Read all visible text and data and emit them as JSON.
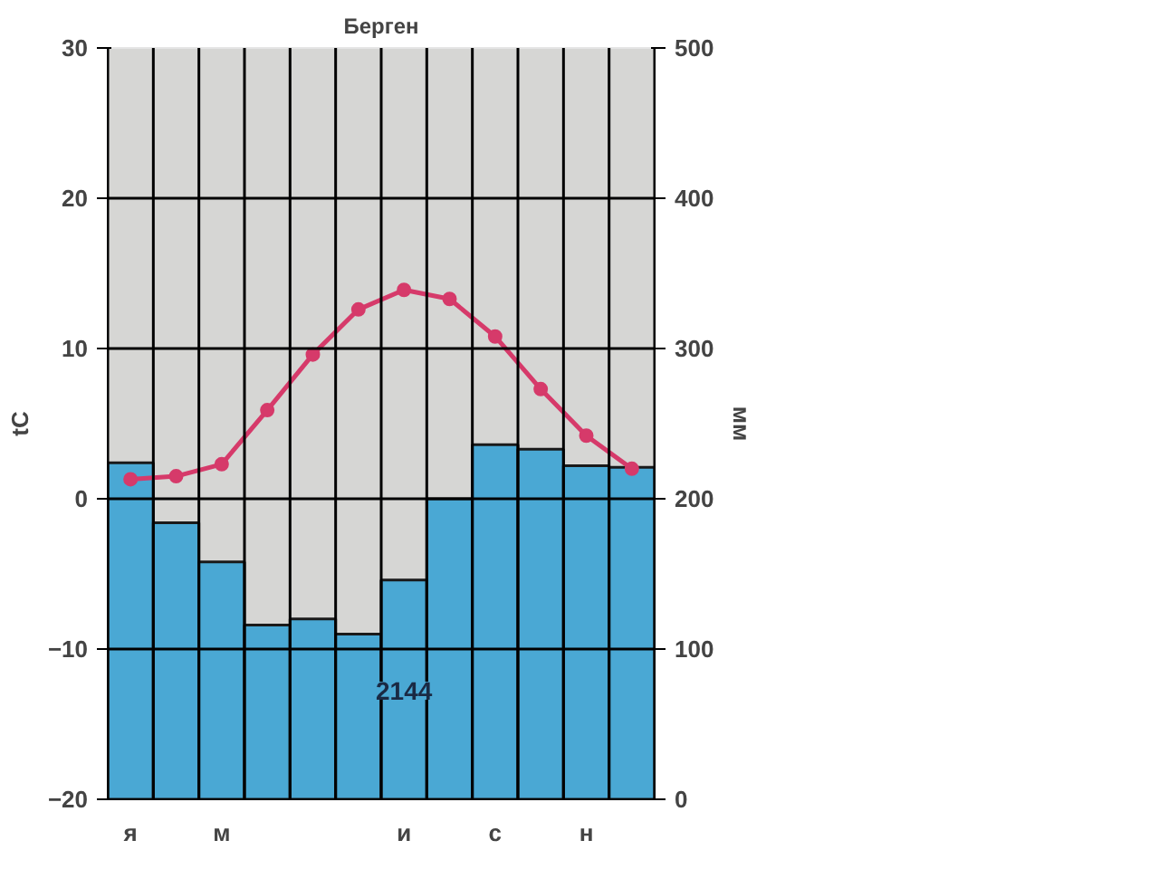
{
  "chart_data": {
    "type": "bar",
    "title": "Берген",
    "ylabel": "tC",
    "y2label": "мм",
    "categories": [
      "я",
      null,
      "м",
      null,
      null,
      null,
      "и",
      null,
      "с",
      null,
      "н",
      null
    ],
    "series": [
      {
        "axis": "y2",
        "color": "#4aa8d4",
        "values": [
          224,
          184,
          158,
          116,
          120,
          110,
          146,
          200,
          236,
          233,
          222,
          221
        ]
      },
      {
        "type": "line",
        "axis": "y",
        "color": "#d63a6a",
        "marker": "circle",
        "values": [
          1.3,
          1.5,
          2.3,
          5.9,
          9.6,
          12.6,
          13.9,
          13.3,
          10.8,
          7.3,
          4.2,
          2.0
        ]
      }
    ],
    "ylim": [
      -20,
      30
    ],
    "yticks": [
      -20,
      -10,
      0,
      10,
      20,
      30
    ],
    "y2lim": [
      0,
      500
    ],
    "y2ticks": [
      0,
      100,
      200,
      300,
      400,
      500
    ],
    "grid": true,
    "annotations": [
      "2144"
    ]
  }
}
